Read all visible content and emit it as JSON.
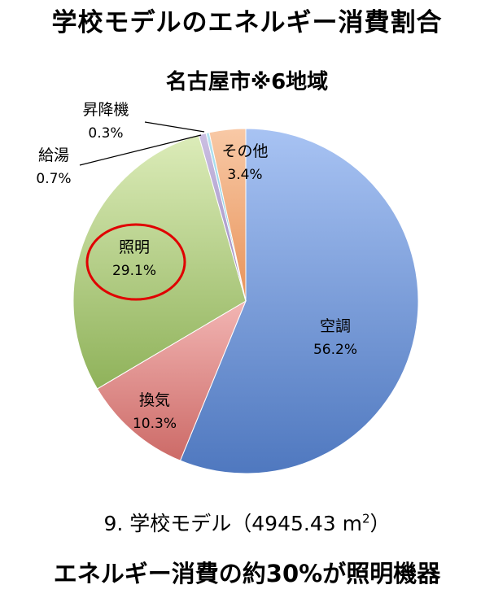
{
  "header": {
    "title": "学校モデルのエネルギー消費割合",
    "subtitle": "名古屋市※6地域"
  },
  "caption": {
    "main": "9. 学校モデル（4945.43 m",
    "superscript": "2",
    "end": "）"
  },
  "footer": {
    "text": "エネルギー消費の約30%が照明機器"
  },
  "chart_data": {
    "type": "pie",
    "title": "名古屋市※6地域",
    "slices": [
      {
        "label": "空調",
        "value": 56.2,
        "value_label": "56.2%",
        "color": "#8eaee9"
      },
      {
        "label": "換気",
        "value": 10.3,
        "value_label": "10.3%",
        "color": "#e69b99"
      },
      {
        "label": "照明",
        "value": 29.1,
        "value_label": "29.1%",
        "color": "#bcd88c"
      },
      {
        "label": "給湯",
        "value": 0.7,
        "value_label": "0.7%",
        "color": "#b7a6d2"
      },
      {
        "label": "昇降機",
        "value": 0.3,
        "value_label": "0.3%",
        "color": "#8fd3e6"
      },
      {
        "label": "その他",
        "value": 3.4,
        "value_label": "3.4%",
        "color": "#f3b07f"
      }
    ],
    "highlighted": "照明",
    "highlight_color": "#e00000"
  }
}
